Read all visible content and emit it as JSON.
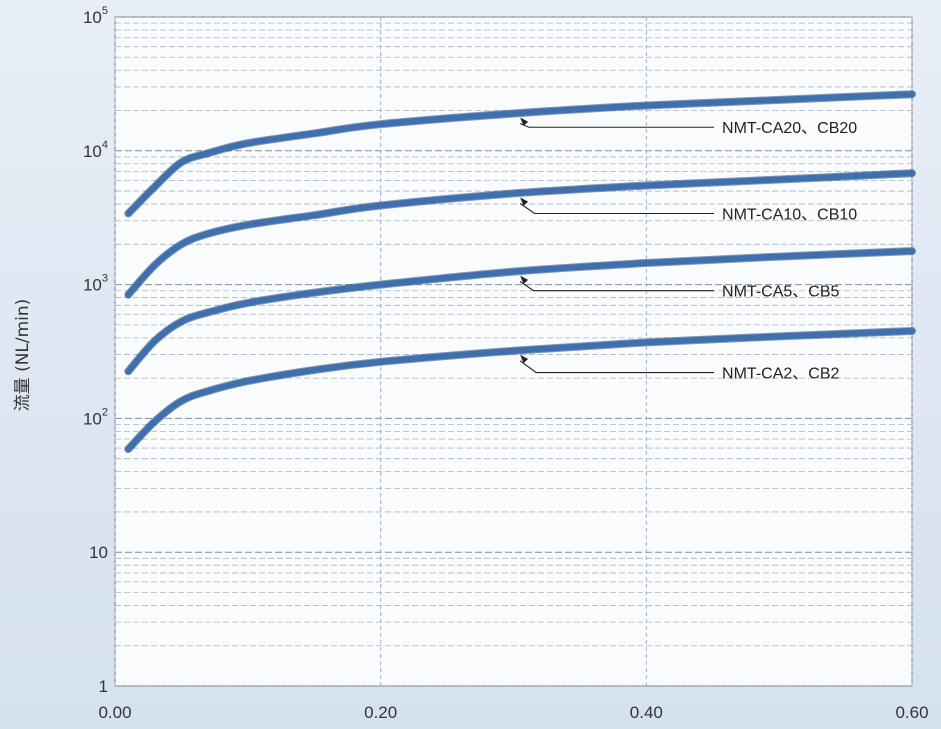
{
  "chart_data": {
    "type": "line",
    "ylabel": "流量 (NL/min)",
    "xlabel": "",
    "xlim": [
      0,
      0.6
    ],
    "ylim": [
      1,
      100000
    ],
    "yscale": "log",
    "grid": true,
    "x_ticks": [
      {
        "value": 0.0,
        "label": "0.00"
      },
      {
        "value": 0.2,
        "label": "0.20"
      },
      {
        "value": 0.4,
        "label": "0.40"
      },
      {
        "value": 0.6,
        "label": "0.60"
      }
    ],
    "y_ticks": [
      {
        "value": 1,
        "base": "1",
        "exp": ""
      },
      {
        "value": 10,
        "base": "10",
        "exp": ""
      },
      {
        "value": 100,
        "base": "10",
        "exp": "2"
      },
      {
        "value": 1000,
        "base": "10",
        "exp": "3"
      },
      {
        "value": 10000,
        "base": "10",
        "exp": "4"
      },
      {
        "value": 100000,
        "base": "10",
        "exp": "5"
      }
    ],
    "line_color": "#3e6fae",
    "series": [
      {
        "name": "NMT-CA20、CB20",
        "x": [
          0.01,
          0.03,
          0.05,
          0.07,
          0.1,
          0.15,
          0.2,
          0.3,
          0.4,
          0.5,
          0.6
        ],
        "y": [
          3400,
          5400,
          8200,
          9600,
          11400,
          13500,
          15800,
          19000,
          21800,
          24000,
          26500
        ]
      },
      {
        "name": "NMT-CA10、CB10",
        "x": [
          0.01,
          0.03,
          0.05,
          0.07,
          0.1,
          0.15,
          0.2,
          0.3,
          0.4,
          0.5,
          0.6
        ],
        "y": [
          840,
          1400,
          2000,
          2400,
          2800,
          3300,
          3900,
          4800,
          5500,
          6100,
          6800
        ]
      },
      {
        "name": "NMT-CA5、CB5",
        "x": [
          0.01,
          0.03,
          0.05,
          0.07,
          0.1,
          0.15,
          0.2,
          0.3,
          0.4,
          0.5,
          0.6
        ],
        "y": [
          225,
          380,
          530,
          620,
          730,
          870,
          1000,
          1250,
          1450,
          1620,
          1780
        ]
      },
      {
        "name": "NMT-CA2、CB2",
        "x": [
          0.01,
          0.03,
          0.05,
          0.07,
          0.1,
          0.15,
          0.2,
          0.3,
          0.4,
          0.5,
          0.6
        ],
        "y": [
          59,
          95,
          135,
          160,
          190,
          230,
          265,
          320,
          370,
          410,
          450
        ]
      }
    ],
    "annotations": [
      {
        "label": "NMT-CA20、CB20",
        "point": [
          0.305,
          19000
        ],
        "text_at": [
          0.457,
          15000
        ]
      },
      {
        "label": "NMT-CA10、CB10",
        "point": [
          0.305,
          4800
        ],
        "text_at": [
          0.457,
          3400
        ]
      },
      {
        "label": "NMT-CA5、CB5",
        "point": [
          0.305,
          1250
        ],
        "text_at": [
          0.457,
          900
        ]
      },
      {
        "label": "NMT-CA2、CB2",
        "point": [
          0.305,
          320
        ],
        "text_at": [
          0.457,
          220
        ]
      }
    ]
  }
}
